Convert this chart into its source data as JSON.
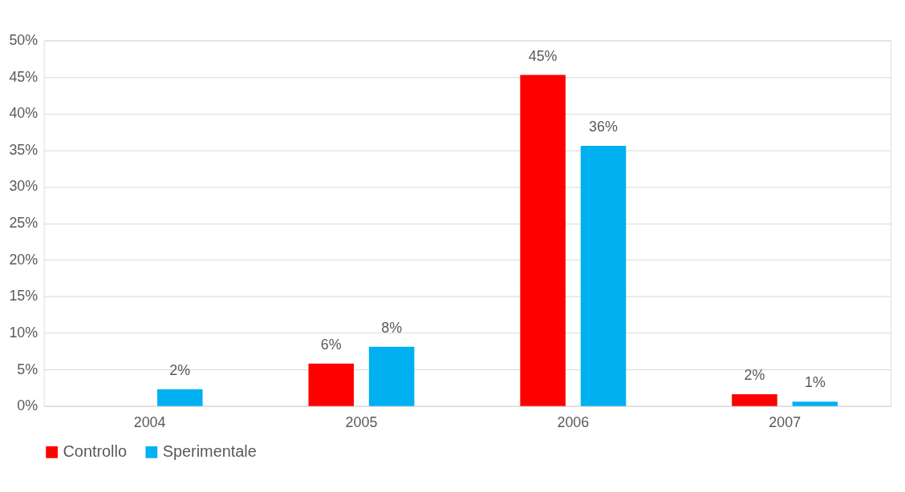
{
  "chart_data": {
    "type": "bar",
    "categories": [
      "2004",
      "2005",
      "2006",
      "2007"
    ],
    "series": [
      {
        "name": "Controllo",
        "color": "#ff0000",
        "values": [
          null,
          5.8,
          45.3,
          1.6
        ],
        "value_labels": [
          null,
          "6%",
          "45%",
          "2%"
        ]
      },
      {
        "name": "Sperimentale",
        "color": "#00b0f0",
        "values": [
          2.3,
          8.1,
          35.6,
          0.6
        ],
        "value_labels": [
          "2%",
          "8%",
          "36%",
          "1%"
        ]
      }
    ],
    "ylim": [
      0,
      50
    ],
    "yticks": [
      {
        "value": 0,
        "label": "0%"
      },
      {
        "value": 5,
        "label": "5%"
      },
      {
        "value": 10,
        "label": "10%"
      },
      {
        "value": 15,
        "label": "15%"
      },
      {
        "value": 20,
        "label": "20%"
      },
      {
        "value": 25,
        "label": "25%"
      },
      {
        "value": 30,
        "label": "30%"
      },
      {
        "value": 35,
        "label": "35%"
      },
      {
        "value": 40,
        "label": "40%"
      },
      {
        "value": 45,
        "label": "45%"
      },
      {
        "value": 50,
        "label": "50%"
      }
    ],
    "grid": "y",
    "legend": "bottom"
  }
}
